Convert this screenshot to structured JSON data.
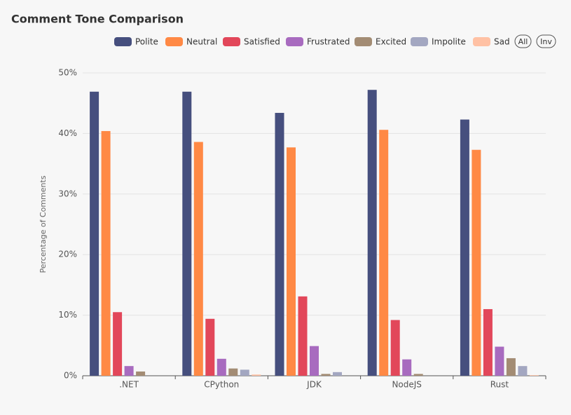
{
  "chart_data": {
    "type": "bar",
    "title": "Comment Tone Comparison",
    "y_label": "Percentage of Comments",
    "categories": [
      ".NET",
      "CPython",
      "JDK",
      "NodeJS",
      "Rust"
    ],
    "series": [
      {
        "name": "Polite",
        "color": "#464f7e",
        "values": [
          46.9,
          46.9,
          43.4,
          47.2,
          42.3
        ]
      },
      {
        "name": "Neutral",
        "color": "#ff8945",
        "values": [
          40.4,
          38.6,
          37.7,
          40.6,
          37.3
        ]
      },
      {
        "name": "Satisfied",
        "color": "#e2475a",
        "values": [
          10.5,
          9.4,
          13.1,
          9.2,
          11.0
        ]
      },
      {
        "name": "Frustrated",
        "color": "#a86bbf",
        "values": [
          1.6,
          2.8,
          4.9,
          2.7,
          4.8
        ]
      },
      {
        "name": "Excited",
        "color": "#a38c74",
        "values": [
          0.7,
          1.2,
          0.3,
          0.3,
          2.9
        ]
      },
      {
        "name": "Impolite",
        "color": "#a3a7c1",
        "values": [
          0,
          1.0,
          0.6,
          0,
          1.6
        ]
      },
      {
        "name": "Sad",
        "color": "#ffc1a4",
        "values": [
          0,
          0.2,
          0,
          0,
          0.1
        ]
      }
    ],
    "legend_actions": [
      "All",
      "Inv"
    ],
    "ylim": [
      0,
      50
    ],
    "yticks": [
      {
        "value": 0,
        "label": "0%"
      },
      {
        "value": 10,
        "label": "10%"
      },
      {
        "value": 20,
        "label": "20%"
      },
      {
        "value": 30,
        "label": "30%"
      },
      {
        "value": 40,
        "label": "40%"
      },
      {
        "value": 50,
        "label": "50%"
      }
    ],
    "grid": true
  }
}
